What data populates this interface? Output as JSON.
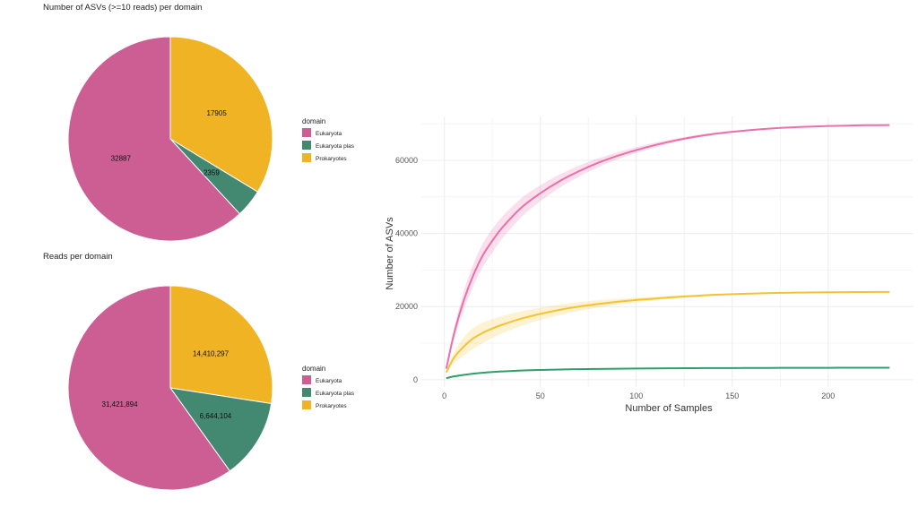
{
  "colors": {
    "eukaryota": "#cc5e93",
    "eukaryota_plas": "#438870",
    "prokaryotes": "#efb324",
    "curve_eukaryota": "#ea6faa",
    "curve_eukaryota_plas": "#2f9e6a",
    "curve_prokaryotes": "#f5c232",
    "grid": "#ececec"
  },
  "chart_data": [
    {
      "type": "pie",
      "title": "Number of ASVs (>=10 reads) per domain",
      "legend": {
        "title": "domain",
        "position": "right"
      },
      "slices": [
        {
          "name": "Prokaryotes",
          "value": 17905,
          "label": "17905",
          "color_key": "prokaryotes"
        },
        {
          "name": "Eukaryota plas",
          "value": 2359,
          "label": "2359",
          "color_key": "eukaryota_plas"
        },
        {
          "name": "Eukaryota",
          "value": 32887,
          "label": "32887",
          "color_key": "eukaryota"
        }
      ],
      "legend_order": [
        "Eukaryota",
        "Eukaryota plas",
        "Prokaryotes"
      ]
    },
    {
      "type": "pie",
      "title": "Reads per domain",
      "legend": {
        "title": "domain",
        "position": "right"
      },
      "slices": [
        {
          "name": "Prokaryotes",
          "value": 14410297,
          "label": "14,410,297",
          "color_key": "prokaryotes"
        },
        {
          "name": "Eukaryota plas",
          "value": 6644104,
          "label": "6,644,104",
          "color_key": "eukaryota_plas"
        },
        {
          "name": "Eukaryota",
          "value": 31421894,
          "label": "31,421,894",
          "color_key": "eukaryota"
        }
      ],
      "legend_order": [
        "Eukaryota",
        "Eukaryota plas",
        "Prokaryotes"
      ]
    },
    {
      "type": "line",
      "title": "",
      "xlabel": "Number of Samples",
      "ylabel": "Number of ASVs",
      "xlim": [
        -12,
        244
      ],
      "ylim": [
        -2000,
        72000
      ],
      "xticks": [
        0,
        50,
        100,
        150,
        200
      ],
      "yticks": [
        0,
        20000,
        40000,
        60000
      ],
      "ytick_labels": [
        "0",
        "20000",
        "40000",
        "60000"
      ],
      "grid": true,
      "legend": false,
      "series": [
        {
          "color_key": "curve_eukaryota",
          "x": [
            1,
            5,
            10,
            15,
            20,
            25,
            30,
            40,
            50,
            60,
            70,
            80,
            90,
            100,
            110,
            120,
            130,
            140,
            150,
            160,
            170,
            180,
            190,
            200,
            210,
            220,
            232
          ],
          "y": [
            3000,
            12500,
            21500,
            28500,
            34000,
            38000,
            41500,
            47000,
            51000,
            54300,
            57000,
            59300,
            61200,
            62800,
            64200,
            65400,
            66400,
            67200,
            67800,
            68300,
            68700,
            69000,
            69200,
            69400,
            69500,
            69600,
            69650
          ],
          "band": [
            0,
            1500,
            2500,
            3000,
            3200,
            3200,
            3000,
            2600,
            2200,
            1800,
            1500,
            1200,
            1000,
            800,
            650,
            500,
            400,
            300,
            250,
            200,
            150,
            100,
            80,
            60,
            40,
            20,
            0
          ]
        },
        {
          "color_key": "curve_prokaryotes",
          "x": [
            1,
            5,
            10,
            15,
            20,
            25,
            30,
            40,
            50,
            60,
            70,
            80,
            90,
            100,
            110,
            120,
            130,
            140,
            150,
            160,
            170,
            180,
            190,
            200,
            210,
            220,
            232
          ],
          "y": [
            2000,
            6000,
            9000,
            11300,
            12800,
            14000,
            15000,
            16700,
            18000,
            19100,
            20000,
            20700,
            21300,
            21800,
            22200,
            22600,
            22900,
            23200,
            23400,
            23550,
            23700,
            23800,
            23850,
            23900,
            23950,
            23980,
            24000
          ],
          "band": [
            0,
            1500,
            2500,
            2800,
            2800,
            2600,
            2400,
            2000,
            1700,
            1400,
            1200,
            1000,
            800,
            650,
            500,
            400,
            300,
            250,
            200,
            150,
            100,
            80,
            60,
            40,
            30,
            20,
            0
          ]
        },
        {
          "color_key": "curve_eukaryota_plas",
          "x": [
            1,
            5,
            10,
            15,
            20,
            25,
            30,
            40,
            50,
            60,
            70,
            80,
            90,
            100,
            110,
            120,
            130,
            140,
            150,
            160,
            170,
            180,
            190,
            200,
            210,
            220,
            232
          ],
          "y": [
            400,
            900,
            1300,
            1650,
            1900,
            2100,
            2250,
            2500,
            2650,
            2780,
            2870,
            2940,
            3000,
            3050,
            3090,
            3120,
            3150,
            3170,
            3190,
            3210,
            3220,
            3230,
            3240,
            3250,
            3260,
            3270,
            3280
          ],
          "band": [
            0,
            150,
            200,
            220,
            220,
            200,
            180,
            150,
            120,
            100,
            80,
            60,
            50,
            40,
            30,
            25,
            20,
            15,
            10,
            10,
            8,
            6,
            4,
            2,
            1,
            0,
            0
          ]
        }
      ]
    }
  ]
}
